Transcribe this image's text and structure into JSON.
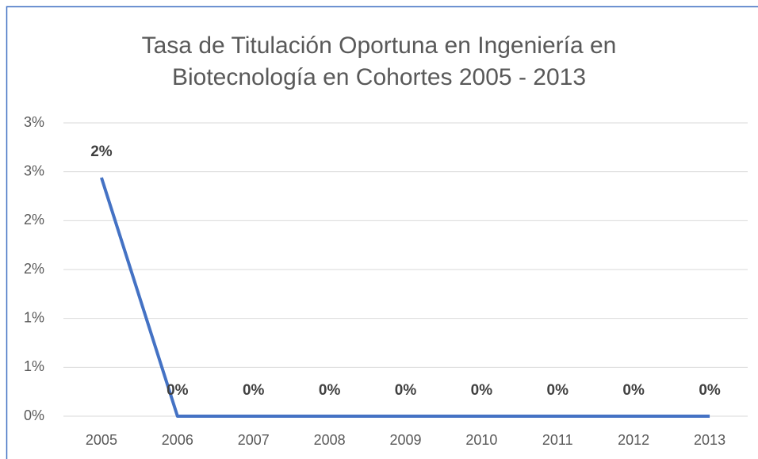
{
  "chart_data": {
    "type": "line",
    "title": "Tasa de Titulación Oportuna en Ingeniería en Biotecnología en Cohortes 2005 - 2013",
    "categories": [
      "2005",
      "2006",
      "2007",
      "2008",
      "2009",
      "2010",
      "2011",
      "2012",
      "2013"
    ],
    "series": [
      {
        "name": "Tasa de Titulación Oportuna",
        "color": "#4472c4",
        "values": [
          2.44,
          0,
          0,
          0,
          0,
          0,
          0,
          0,
          0
        ],
        "value_labels": [
          "2%",
          "0%",
          "0%",
          "0%",
          "0%",
          "0%",
          "0%",
          "0%",
          "0%"
        ]
      }
    ],
    "ylim": [
      0,
      3
    ],
    "yticks": [
      {
        "value": 0,
        "label": "0%"
      },
      {
        "value": 0.5,
        "label": "1%"
      },
      {
        "value": 1,
        "label": "1%"
      },
      {
        "value": 1.5,
        "label": "2%"
      },
      {
        "value": 2,
        "label": "2%"
      },
      {
        "value": 2.5,
        "label": "3%"
      },
      {
        "value": 3,
        "label": "3%"
      }
    ],
    "grid": true
  }
}
